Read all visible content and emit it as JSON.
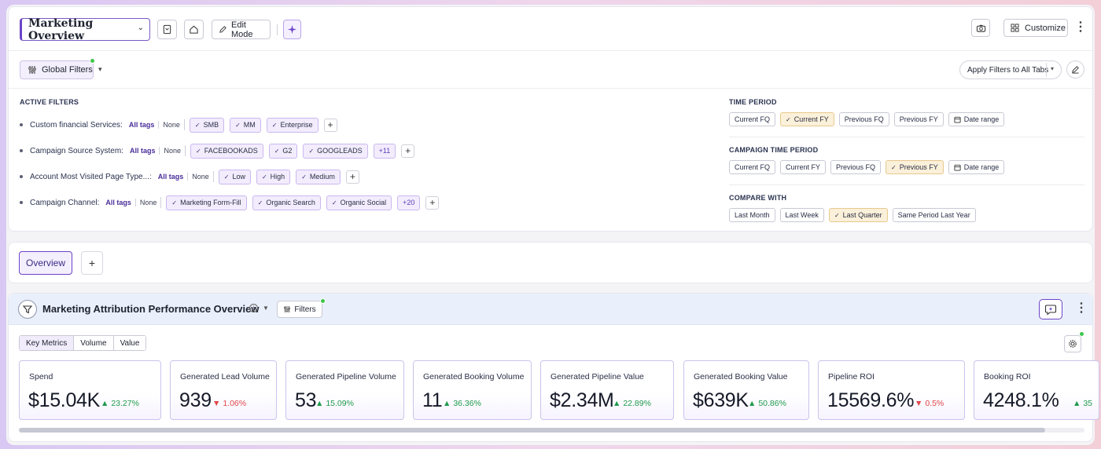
{
  "header": {
    "dashboard_title": "Marketing Overview",
    "edit_mode_label": "Edit Mode",
    "customize_label": "Customize"
  },
  "filters_bar": {
    "global_filters_label": "Global Filters",
    "apply_filters_label": "Apply Filters to All Tabs"
  },
  "active_filters": {
    "heading": "ACTIVE FILTERS",
    "rows": [
      {
        "label": "Custom financial Services:",
        "all_tags": "All tags",
        "none": "None",
        "chips": [
          "SMB",
          "MM",
          "Enterprise"
        ],
        "more": ""
      },
      {
        "label": "Campaign Source System:",
        "all_tags": "All tags",
        "none": "None",
        "chips": [
          "FACEBOOKADS",
          "G2",
          "GOOGLEADS"
        ],
        "more": "+11"
      },
      {
        "label": "Account Most Visited Page Type...:",
        "all_tags": "All tags",
        "none": "None",
        "chips": [
          "Low",
          "High",
          "Medium"
        ],
        "more": ""
      },
      {
        "label": "Campaign Channel:",
        "all_tags": "All tags",
        "none": "None",
        "chips": [
          "Marketing Form-Fill",
          "Organic Search",
          "Organic Social"
        ],
        "more": "+20"
      }
    ]
  },
  "time_period": {
    "heading": "TIME PERIOD",
    "options": [
      {
        "label": "Current FQ",
        "selected": false
      },
      {
        "label": "Current FY",
        "selected": true
      },
      {
        "label": "Previous FQ",
        "selected": false
      },
      {
        "label": "Previous FY",
        "selected": false
      },
      {
        "label": "Date range",
        "selected": false
      }
    ]
  },
  "campaign_time_period": {
    "heading": "CAMPAIGN TIME PERIOD",
    "options": [
      {
        "label": "Current FQ",
        "selected": false
      },
      {
        "label": "Current FY",
        "selected": false
      },
      {
        "label": "Previous FQ",
        "selected": false
      },
      {
        "label": "Previous FY",
        "selected": true
      },
      {
        "label": "Date range",
        "selected": false
      }
    ]
  },
  "compare_with": {
    "heading": "COMPARE WITH",
    "options": [
      {
        "label": "Last Month",
        "selected": false
      },
      {
        "label": "Last Week",
        "selected": false
      },
      {
        "label": "Last Quarter",
        "selected": true
      },
      {
        "label": "Same Period Last Year",
        "selected": false
      }
    ]
  },
  "tabs": {
    "items": [
      {
        "label": "Overview",
        "active": true
      }
    ],
    "add_label": "+"
  },
  "widget": {
    "title": "Marketing Attribution Performance Overview",
    "filters_label": "Filters",
    "segments": [
      {
        "label": "Key Metrics",
        "active": true
      },
      {
        "label": "Volume",
        "active": false
      },
      {
        "label": "Value",
        "active": false
      }
    ],
    "metrics": [
      {
        "label": "Spend",
        "value": "$15.04K",
        "delta": "23.27%",
        "direction": "up"
      },
      {
        "label": "Generated Lead Volume",
        "value": "939",
        "delta": "1.06%",
        "direction": "down"
      },
      {
        "label": "Generated Pipeline Volume",
        "value": "53",
        "delta": "15.09%",
        "direction": "up"
      },
      {
        "label": "Generated Booking Volume",
        "value": "11",
        "delta": "36.36%",
        "direction": "up"
      },
      {
        "label": "Generated Pipeline Value",
        "value": "$2.34M",
        "delta": "22.89%",
        "direction": "up"
      },
      {
        "label": "Generated Booking Value",
        "value": "$639K",
        "delta": "50.86%",
        "direction": "up"
      },
      {
        "label": "Pipeline ROI",
        "value": "15569.6%",
        "delta": "0.5%",
        "direction": "down"
      },
      {
        "label": "Booking ROI",
        "value": "4248.1%",
        "delta": "35",
        "direction": "up"
      }
    ]
  },
  "colors": {
    "accent": "#6b44c7",
    "positive": "#1f9a4e",
    "negative": "#e0464b",
    "selected_chip": "#fbf0d9",
    "status_dot": "#3fc54a"
  },
  "icons": [
    "chevron-down-icon",
    "bookmark-icon",
    "home-icon",
    "pencil-icon",
    "sparkle-icon",
    "camera-icon",
    "grid-icon",
    "kebab-icon",
    "sliders-icon",
    "caret-down-icon",
    "edit-icon",
    "check-icon",
    "plus-icon",
    "calendar-icon",
    "funnel-icon",
    "info-icon",
    "chat-sparkle-icon",
    "gear-icon",
    "triangle-up-icon",
    "triangle-down-icon"
  ]
}
